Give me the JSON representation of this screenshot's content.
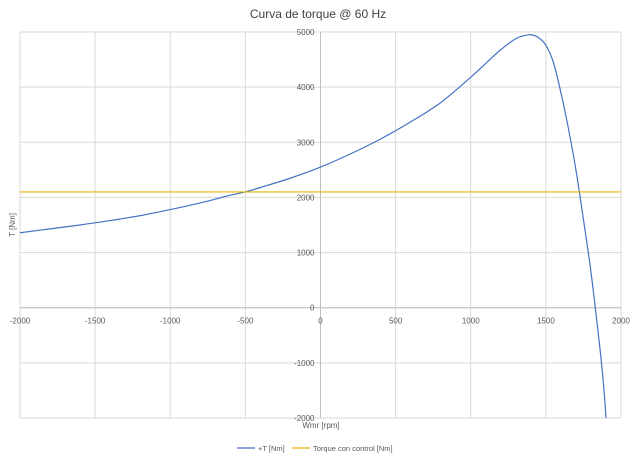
{
  "chart_data": {
    "type": "line",
    "title": "Curva de torque @ 60 Hz",
    "xlabel": "Wmr [rpm]",
    "ylabel": "T [Nm]",
    "xlim": [
      -2000,
      2000
    ],
    "ylim": [
      -2000,
      5000
    ],
    "x_ticks": [
      "-2000",
      "-1500",
      "-1000",
      "-500",
      "0",
      "500",
      "1000",
      "1500",
      "2000"
    ],
    "y_ticks": [
      "-2000",
      "-1000",
      "0",
      "1000",
      "2000",
      "3000",
      "4000",
      "5000"
    ],
    "grid": true,
    "legend_position": "bottom",
    "series": [
      {
        "name": "+T [Nm]",
        "color": "#4472C4",
        "points": [
          [
            -2000,
            1360
          ],
          [
            -1800,
            1430
          ],
          [
            -1600,
            1500
          ],
          [
            -1500,
            1540
          ],
          [
            -1400,
            1580
          ],
          [
            -1200,
            1670
          ],
          [
            -1000,
            1780
          ],
          [
            -800,
            1900
          ],
          [
            -600,
            2040
          ],
          [
            -500,
            2100
          ],
          [
            -400,
            2180
          ],
          [
            -200,
            2350
          ],
          [
            0,
            2550
          ],
          [
            200,
            2790
          ],
          [
            400,
            3060
          ],
          [
            600,
            3370
          ],
          [
            800,
            3720
          ],
          [
            1000,
            4180
          ],
          [
            1100,
            4430
          ],
          [
            1200,
            4680
          ],
          [
            1300,
            4880
          ],
          [
            1350,
            4930
          ],
          [
            1400,
            4950
          ],
          [
            1450,
            4900
          ],
          [
            1500,
            4760
          ],
          [
            1550,
            4450
          ],
          [
            1600,
            3900
          ],
          [
            1650,
            3250
          ],
          [
            1700,
            2500
          ],
          [
            1750,
            1600
          ],
          [
            1800,
            650
          ],
          [
            1850,
            -500
          ],
          [
            1870,
            -1000
          ],
          [
            1890,
            -1600
          ],
          [
            1900,
            -2000
          ]
        ]
      },
      {
        "name": "Torque con control [Nm]",
        "color": "#E8B400",
        "points": [
          [
            -2000,
            2100
          ],
          [
            2000,
            2100
          ]
        ]
      }
    ]
  }
}
